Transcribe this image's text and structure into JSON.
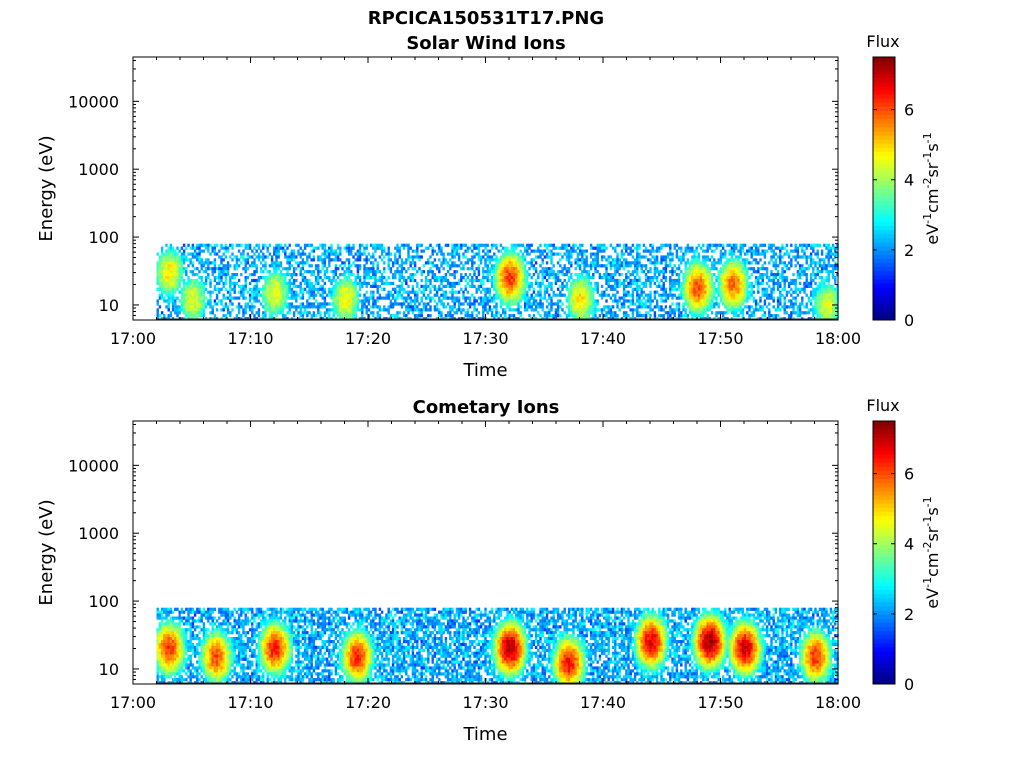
{
  "figure": {
    "title": "RPCICA150531T17.PNG"
  },
  "colors": {
    "colormap": "jet",
    "axis": "#000000",
    "background": "#ffffff"
  },
  "chart_data": [
    {
      "type": "heatmap",
      "title": "Solar Wind Ions",
      "xlabel": "Time",
      "ylabel": "Energy (eV)",
      "y_scale": "log",
      "ylim": [
        6,
        45000
      ],
      "xlim": [
        "17:00",
        "18:00"
      ],
      "x_ticks": [
        "17:00",
        "17:10",
        "17:20",
        "17:30",
        "17:40",
        "17:50",
        "18:00"
      ],
      "y_ticks": [
        "10",
        "100",
        "1000",
        "10000"
      ],
      "grid": false,
      "colorbar": {
        "label": "Flux",
        "units": "eV-1cm-2sr-1s-1",
        "range": [
          0,
          7.5
        ],
        "ticks": [
          "0",
          "2",
          "4",
          "6"
        ]
      },
      "data_start": "17:02",
      "energy_extent_eV": [
        6,
        80
      ],
      "hotspots": [
        {
          "time": "17:03",
          "energy_eV": 30,
          "flux": 4.8
        },
        {
          "time": "17:05",
          "energy_eV": 12,
          "flux": 4.5
        },
        {
          "time": "17:12",
          "energy_eV": 15,
          "flux": 4.6
        },
        {
          "time": "17:18",
          "energy_eV": 12,
          "flux": 4.7
        },
        {
          "time": "17:32",
          "energy_eV": 25,
          "flux": 6.2
        },
        {
          "time": "17:38",
          "energy_eV": 12,
          "flux": 4.9
        },
        {
          "time": "17:48",
          "energy_eV": 18,
          "flux": 6.0
        },
        {
          "time": "17:51",
          "energy_eV": 20,
          "flux": 5.8
        },
        {
          "time": "17:59",
          "energy_eV": 10,
          "flux": 4.5
        }
      ]
    },
    {
      "type": "heatmap",
      "title": "Cometary Ions",
      "xlabel": "Time",
      "ylabel": "Energy (eV)",
      "y_scale": "log",
      "ylim": [
        6,
        45000
      ],
      "xlim": [
        "17:00",
        "18:00"
      ],
      "x_ticks": [
        "17:00",
        "17:10",
        "17:20",
        "17:30",
        "17:40",
        "17:50",
        "18:00"
      ],
      "y_ticks": [
        "10",
        "100",
        "1000",
        "10000"
      ],
      "grid": false,
      "colorbar": {
        "label": "Flux",
        "units": "eV-1cm-2sr-1s-1",
        "range": [
          0,
          7.5
        ],
        "ticks": [
          "0",
          "2",
          "4",
          "6"
        ]
      },
      "data_start": "17:02",
      "energy_extent_eV": [
        6,
        80
      ],
      "hotspots": [
        {
          "time": "17:03",
          "energy_eV": 20,
          "flux": 6.2
        },
        {
          "time": "17:07",
          "energy_eV": 15,
          "flux": 6.0
        },
        {
          "time": "17:12",
          "energy_eV": 20,
          "flux": 6.4
        },
        {
          "time": "17:19",
          "energy_eV": 15,
          "flux": 6.3
        },
        {
          "time": "17:32",
          "energy_eV": 20,
          "flux": 7.2
        },
        {
          "time": "17:37",
          "energy_eV": 12,
          "flux": 6.5
        },
        {
          "time": "17:44",
          "energy_eV": 25,
          "flux": 6.8
        },
        {
          "time": "17:49",
          "energy_eV": 25,
          "flux": 7.3
        },
        {
          "time": "17:52",
          "energy_eV": 20,
          "flux": 7.0
        },
        {
          "time": "17:58",
          "energy_eV": 15,
          "flux": 6.2
        }
      ]
    }
  ]
}
